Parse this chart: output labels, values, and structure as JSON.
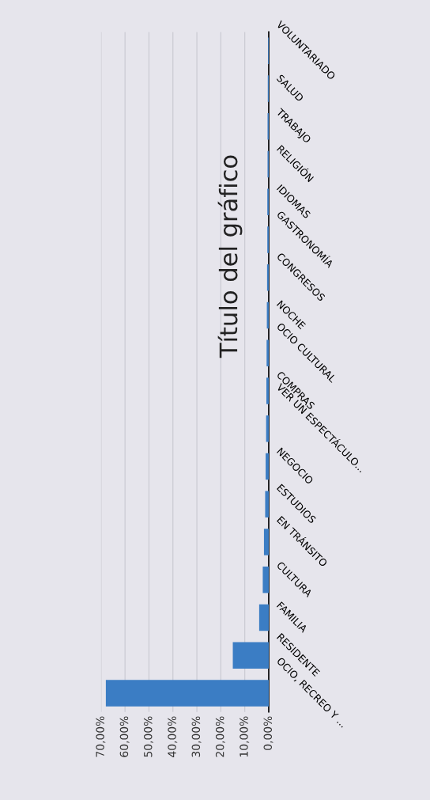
{
  "chart_data": {
    "type": "bar",
    "title": "Título del gráfico",
    "orientation": "horizontal",
    "categories": [
      "VOLUNTARIADO",
      "SALUD",
      "TRABAJO",
      "RELIGIÓN",
      "IDIOMAS",
      "GASTRONOMÍA",
      "CONGRESOS",
      "NOCHE",
      "OCIO CULTURAL",
      "COMPRAS",
      "VER UN ESPECTÁCULO...",
      "NEGOCIO",
      "ESTUDIOS",
      "EN TRÁNSITO",
      "CULTURA",
      "FAMILIA",
      "RESIDENTE",
      "OCIO, RECREO Y ..."
    ],
    "values": [
      0.3,
      0.4,
      0.5,
      0.5,
      0.6,
      0.6,
      0.7,
      0.8,
      0.9,
      1.0,
      1.1,
      1.3,
      1.5,
      2.0,
      2.5,
      4.0,
      15,
      68
    ],
    "color": "#3b7dc4",
    "xlim": [
      70,
      0
    ],
    "xticks": [
      {
        "value": 70,
        "label": "70,00%"
      },
      {
        "value": 60,
        "label": "60,00%"
      },
      {
        "value": 50,
        "label": "50,00%"
      },
      {
        "value": 40,
        "label": "40,00%"
      },
      {
        "value": 30,
        "label": "30,00%"
      },
      {
        "value": 20,
        "label": "20,00%"
      },
      {
        "value": 10,
        "label": "10,00%"
      },
      {
        "value": 0,
        "label": "0,00%"
      }
    ],
    "grid": "x"
  }
}
